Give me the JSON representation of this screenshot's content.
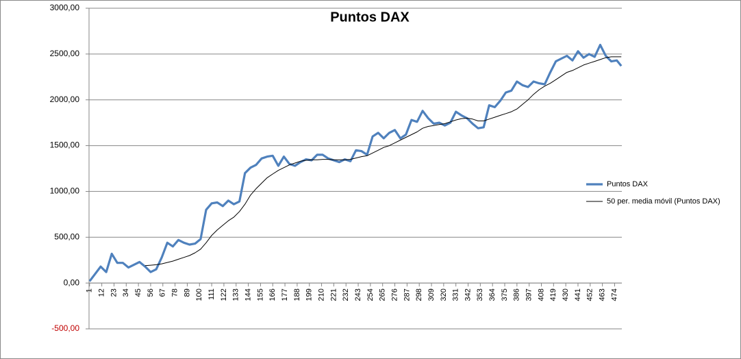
{
  "chart_data": {
    "type": "line",
    "title": "Puntos DAX",
    "x": [
      1,
      6,
      11,
      16,
      21,
      26,
      31,
      36,
      41,
      46,
      51,
      56,
      61,
      66,
      71,
      76,
      81,
      86,
      91,
      96,
      101,
      106,
      111,
      116,
      121,
      126,
      131,
      136,
      141,
      146,
      151,
      156,
      161,
      166,
      171,
      176,
      181,
      186,
      191,
      196,
      201,
      206,
      211,
      216,
      221,
      226,
      231,
      236,
      241,
      246,
      251,
      256,
      261,
      266,
      271,
      276,
      281,
      286,
      291,
      296,
      301,
      306,
      311,
      316,
      321,
      326,
      331,
      336,
      341,
      346,
      351,
      356,
      361,
      366,
      371,
      376,
      381,
      386,
      391,
      396,
      401,
      406,
      411,
      416,
      421,
      426,
      431,
      436,
      441,
      446,
      451,
      456,
      461,
      466,
      471,
      476,
      480
    ],
    "series": [
      {
        "name": "Puntos DAX",
        "color": "#4f81bd",
        "width": 3.2,
        "values": [
          20,
          100,
          180,
          120,
          320,
          220,
          220,
          170,
          200,
          230,
          180,
          120,
          150,
          280,
          440,
          400,
          470,
          440,
          420,
          430,
          480,
          800,
          870,
          880,
          840,
          900,
          860,
          890,
          1200,
          1260,
          1290,
          1360,
          1380,
          1390,
          1280,
          1380,
          1300,
          1280,
          1320,
          1350,
          1340,
          1400,
          1400,
          1360,
          1340,
          1320,
          1350,
          1330,
          1450,
          1440,
          1400,
          1600,
          1640,
          1580,
          1640,
          1670,
          1580,
          1620,
          1780,
          1760,
          1880,
          1800,
          1740,
          1750,
          1720,
          1750,
          1870,
          1830,
          1800,
          1740,
          1690,
          1700,
          1940,
          1920,
          1990,
          2080,
          2100,
          2200,
          2160,
          2140,
          2200,
          2180,
          2170,
          2300,
          2420,
          2450,
          2480,
          2430,
          2530,
          2460,
          2500,
          2470,
          2600,
          2480,
          2420,
          2430,
          2370
        ]
      },
      {
        "name": "50 per. media móvil (Puntos DAX)",
        "color": "#000000",
        "width": 1,
        "values": [
          null,
          null,
          null,
          null,
          null,
          null,
          null,
          null,
          null,
          null,
          190,
          195,
          200,
          210,
          225,
          240,
          260,
          280,
          300,
          330,
          370,
          440,
          520,
          580,
          630,
          680,
          720,
          780,
          860,
          960,
          1030,
          1090,
          1150,
          1190,
          1230,
          1260,
          1290,
          1310,
          1330,
          1340,
          1345,
          1345,
          1350,
          1350,
          1345,
          1345,
          1345,
          1350,
          1365,
          1380,
          1390,
          1420,
          1450,
          1480,
          1500,
          1530,
          1560,
          1590,
          1620,
          1650,
          1690,
          1710,
          1720,
          1730,
          1740,
          1760,
          1780,
          1795,
          1800,
          1790,
          1770,
          1770,
          1790,
          1810,
          1830,
          1850,
          1870,
          1900,
          1950,
          2000,
          2060,
          2110,
          2150,
          2180,
          2220,
          2260,
          2300,
          2320,
          2350,
          2380,
          2400,
          2420,
          2440,
          2460,
          2470,
          2470,
          2470
        ]
      }
    ],
    "xlim": [
      0.5,
      480.5
    ],
    "xticks": [
      1,
      12,
      23,
      34,
      45,
      56,
      67,
      78,
      89,
      100,
      111,
      122,
      133,
      144,
      155,
      166,
      177,
      188,
      199,
      210,
      221,
      232,
      243,
      254,
      265,
      276,
      287,
      298,
      309,
      320,
      331,
      342,
      353,
      364,
      375,
      386,
      397,
      408,
      419,
      430,
      441,
      452,
      463,
      474
    ],
    "ylim": [
      -500,
      3000
    ],
    "yticks": [
      {
        "value": -500,
        "label": "-500,00"
      },
      {
        "value": 0,
        "label": "0,00"
      },
      {
        "value": 500,
        "label": "500,00"
      },
      {
        "value": 1000,
        "label": "1000,00"
      },
      {
        "value": 1500,
        "label": "1500,00"
      },
      {
        "value": 2000,
        "label": "2000,00"
      },
      {
        "value": 2500,
        "label": "2500,00"
      },
      {
        "value": 3000,
        "label": "3000,00"
      }
    ],
    "negative_tick_color": "#c00000",
    "grid": true,
    "legend": "right"
  }
}
